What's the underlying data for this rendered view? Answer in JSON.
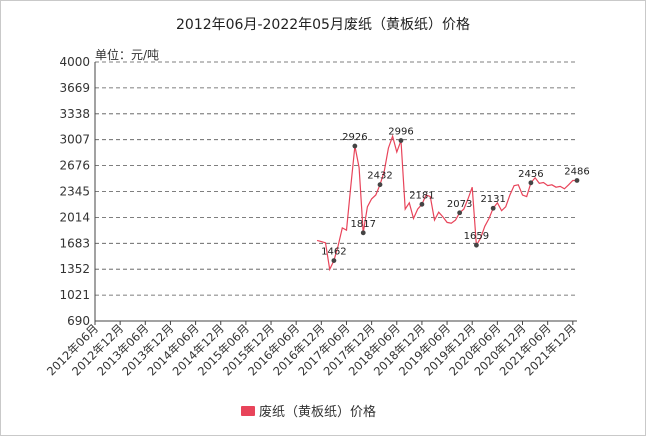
{
  "chart_data": {
    "type": "line",
    "title": "2012年06月-2022年05月废纸（黄板纸）价格",
    "unit_label": "单位：元/吨",
    "legend_position": "bottom",
    "grid": "horizontal dashed",
    "ylim": [
      690,
      4000
    ],
    "yticks": [
      690,
      1021,
      1352,
      1683,
      2014,
      2345,
      2676,
      3007,
      3338,
      3669,
      4000
    ],
    "x_categories": [
      "2012年06月",
      "2012年12月",
      "2013年06月",
      "2013年12月",
      "2014年06月",
      "2014年12月",
      "2015年06月",
      "2015年12月",
      "2016年06月",
      "2016年12月",
      "2017年06月",
      "2017年12月",
      "2018年06月",
      "2018年12月",
      "2019年06月",
      "2019年12月",
      "2020年06月",
      "2020年12月",
      "2021年06月",
      "2021年12月"
    ],
    "series": [
      {
        "name": "废纸（黄板纸）价格",
        "color": "#e8445a",
        "values": [
          [
            53,
            1720
          ],
          [
            54,
            1705
          ],
          [
            55,
            1690
          ],
          [
            56,
            1350
          ],
          [
            57,
            1462
          ],
          [
            58,
            1650
          ],
          [
            59,
            1880
          ],
          [
            60,
            1850
          ],
          [
            61,
            2400
          ],
          [
            62,
            2926
          ],
          [
            63,
            2650
          ],
          [
            64,
            1817
          ],
          [
            65,
            2150
          ],
          [
            66,
            2250
          ],
          [
            67,
            2300
          ],
          [
            68,
            2432
          ],
          [
            69,
            2600
          ],
          [
            70,
            2900
          ],
          [
            71,
            3050
          ],
          [
            72,
            2850
          ],
          [
            73,
            2996
          ],
          [
            74,
            2120
          ],
          [
            75,
            2200
          ],
          [
            76,
            2000
          ],
          [
            77,
            2120
          ],
          [
            78,
            2181
          ],
          [
            79,
            2300
          ],
          [
            80,
            2280
          ],
          [
            81,
            1980
          ],
          [
            82,
            2080
          ],
          [
            83,
            2020
          ],
          [
            84,
            1950
          ],
          [
            85,
            1940
          ],
          [
            86,
            1980
          ],
          [
            87,
            2073
          ],
          [
            88,
            2120
          ],
          [
            89,
            2250
          ],
          [
            90,
            2400
          ],
          [
            91,
            1659
          ],
          [
            92,
            1750
          ],
          [
            93,
            1900
          ],
          [
            94,
            2000
          ],
          [
            95,
            2131
          ],
          [
            96,
            2200
          ],
          [
            97,
            2100
          ],
          [
            98,
            2150
          ],
          [
            99,
            2300
          ],
          [
            100,
            2420
          ],
          [
            101,
            2430
          ],
          [
            102,
            2300
          ],
          [
            103,
            2280
          ],
          [
            104,
            2456
          ],
          [
            105,
            2520
          ],
          [
            106,
            2450
          ],
          [
            107,
            2460
          ],
          [
            108,
            2420
          ],
          [
            109,
            2430
          ],
          [
            110,
            2400
          ],
          [
            111,
            2410
          ],
          [
            112,
            2380
          ],
          [
            113,
            2430
          ],
          [
            114,
            2486
          ],
          [
            115,
            2486
          ]
        ]
      }
    ],
    "annotations": [
      {
        "x": 57,
        "value": 1462,
        "label": "1462"
      },
      {
        "x": 62,
        "value": 2926,
        "label": "2926"
      },
      {
        "x": 64,
        "value": 1817,
        "label": "1817"
      },
      {
        "x": 68,
        "value": 2432,
        "label": "2432"
      },
      {
        "x": 73,
        "value": 2996,
        "label": "2996"
      },
      {
        "x": 78,
        "value": 2181,
        "label": "2181"
      },
      {
        "x": 87,
        "value": 2073,
        "label": "2073"
      },
      {
        "x": 91,
        "value": 1659,
        "label": "1659"
      },
      {
        "x": 95,
        "value": 2131,
        "label": "2131"
      },
      {
        "x": 104,
        "value": 2456,
        "label": "2456"
      },
      {
        "x": 115,
        "value": 2486,
        "label": "2486"
      }
    ]
  }
}
